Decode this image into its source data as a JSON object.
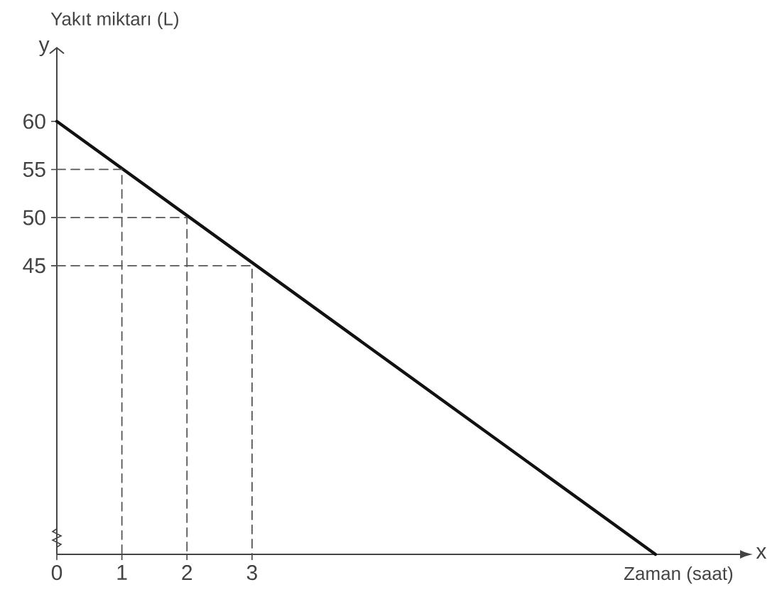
{
  "chart_data": {
    "type": "line",
    "xlabel": "Zaman (saat)",
    "ylabel": "Yakıt miktarı (L)",
    "annotations": [
      "y",
      "x"
    ],
    "series": [
      {
        "color": "#111111",
        "line_style": "solid",
        "x": [
          0,
          9.2
        ],
        "values": [
          60,
          15
        ]
      },
      {
        "color": "#555555",
        "line_style": "dashed",
        "x": [
          0,
          1,
          1
        ],
        "values": [
          55,
          55,
          15
        ]
      },
      {
        "color": "#555555",
        "line_style": "dashed",
        "x": [
          0,
          2,
          2
        ],
        "values": [
          50,
          50,
          15
        ]
      },
      {
        "color": "#555555",
        "line_style": "dashed",
        "x": [
          0,
          3,
          3
        ],
        "values": [
          45,
          45,
          15
        ]
      }
    ],
    "xlim": [
      0,
      10.5
    ],
    "ylim": [
      15,
      67
    ],
    "xticks": [
      0,
      1,
      2,
      3
    ],
    "yticks": [
      45,
      50,
      55,
      60
    ]
  }
}
